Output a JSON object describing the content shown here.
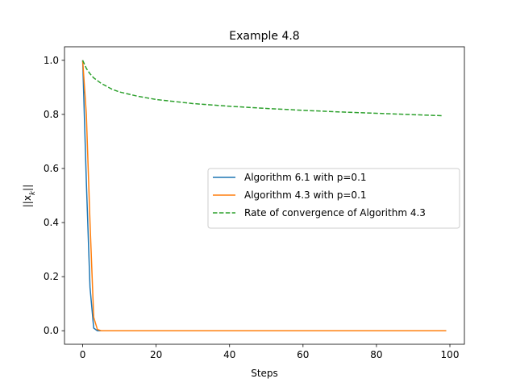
{
  "chart_data": {
    "type": "line",
    "title": "Example 4.8",
    "xlabel": "Steps",
    "ylabel": "||x_k||",
    "xlim": [
      -4.95,
      103.95
    ],
    "ylim": [
      -0.05,
      1.05
    ],
    "xticks": [
      0,
      20,
      40,
      60,
      80,
      100
    ],
    "yticks": [
      0.0,
      0.2,
      0.4,
      0.6,
      0.8,
      1.0
    ],
    "xtick_labels": [
      "0",
      "20",
      "40",
      "60",
      "80",
      "100"
    ],
    "ytick_labels": [
      "0.0",
      "0.2",
      "0.4",
      "0.6",
      "0.8",
      "1.0"
    ],
    "grid": false,
    "legend_position": "center-right",
    "series": [
      {
        "name": "Algorithm 6.1 with p=0.1",
        "color": "#1f77b4",
        "style": "solid",
        "x": [
          0,
          1,
          2,
          3,
          4,
          5,
          10,
          20,
          40,
          60,
          80,
          99
        ],
        "y": [
          1.0,
          0.55,
          0.16,
          0.01,
          0.0,
          0.0,
          0.0,
          0.0,
          0.0,
          0.0,
          0.0,
          0.0
        ]
      },
      {
        "name": "Algorithm 4.3 with p=0.1",
        "color": "#ff7f0e",
        "style": "solid",
        "x": [
          0,
          1,
          2,
          3,
          4,
          5,
          10,
          20,
          40,
          60,
          80,
          99
        ],
        "y": [
          1.0,
          0.8,
          0.4,
          0.05,
          0.005,
          0.0,
          0.0,
          0.0,
          0.0,
          0.0,
          0.0,
          0.0
        ]
      },
      {
        "name": "Rate of convergence of Algorithm 4.3",
        "color": "#2ca02c",
        "style": "dashed",
        "x": [
          0,
          1,
          2,
          3,
          5,
          8,
          10,
          15,
          20,
          30,
          40,
          50,
          60,
          70,
          80,
          90,
          98
        ],
        "y": [
          1.0,
          0.97,
          0.95,
          0.935,
          0.915,
          0.893,
          0.883,
          0.867,
          0.855,
          0.84,
          0.83,
          0.822,
          0.815,
          0.809,
          0.804,
          0.799,
          0.795
        ]
      }
    ]
  }
}
